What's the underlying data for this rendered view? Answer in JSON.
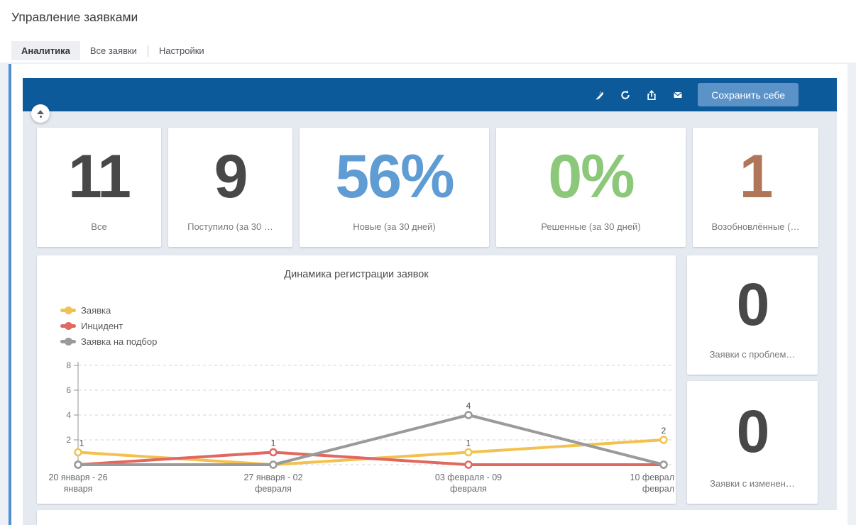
{
  "page": {
    "title": "Управление заявками"
  },
  "tabs": [
    {
      "label": "Аналитика",
      "active": true
    },
    {
      "label": "Все заявки",
      "active": false
    },
    {
      "label": "Настройки",
      "active": false
    }
  ],
  "toolbar": {
    "save_label": "Сохранить себе",
    "color": "#0d5a9b",
    "button_color": "#5b93c8",
    "icons": [
      "pen-off-icon",
      "refresh-icon",
      "upload-icon",
      "mail-icon"
    ]
  },
  "kpi_cards": [
    {
      "value": "11",
      "label": "Все",
      "color": "#484848"
    },
    {
      "value": "9",
      "label": "Поступило (за 30 …",
      "color": "#484848"
    },
    {
      "value": "56%",
      "label": "Новые (за 30 дней)",
      "color": "#5f9cd4"
    },
    {
      "value": "0%",
      "label": "Решенные (за 30 дней)",
      "color": "#8bc879"
    },
    {
      "value": "1",
      "label": "Возобновлённые (…",
      "color": "#b0765a"
    }
  ],
  "side_cards": [
    {
      "value": "0",
      "label": "Заявки с проблем…",
      "color": "#484848"
    },
    {
      "value": "0",
      "label": "Заявки с изменен…",
      "color": "#484848"
    }
  ],
  "chart_data": {
    "type": "line",
    "title": "Динамика регистрации заявок",
    "categories": [
      [
        "20 января - 26",
        "января"
      ],
      [
        "27 января - 02",
        "февраля"
      ],
      [
        "03 февраля - 09",
        "февраля"
      ],
      [
        "10 феврал",
        "феврал"
      ]
    ],
    "series": [
      {
        "name": "Заявка",
        "color": "#f3c24e",
        "values": [
          1,
          0,
          1,
          2
        ],
        "labels": [
          1,
          null,
          1,
          2
        ]
      },
      {
        "name": "Инцидент",
        "color": "#e0685f",
        "values": [
          0,
          1,
          0,
          0
        ],
        "labels": [
          null,
          1,
          null,
          null
        ]
      },
      {
        "name": "Заявка на подбор",
        "color": "#9a9a9a",
        "values": [
          0,
          0,
          4,
          0
        ],
        "labels": [
          null,
          null,
          4,
          null
        ]
      }
    ],
    "ylim": [
      0,
      8
    ],
    "yticks": [
      2,
      4,
      6,
      8
    ],
    "grid": "dashed-horizontal",
    "legend_position": "top-left"
  }
}
